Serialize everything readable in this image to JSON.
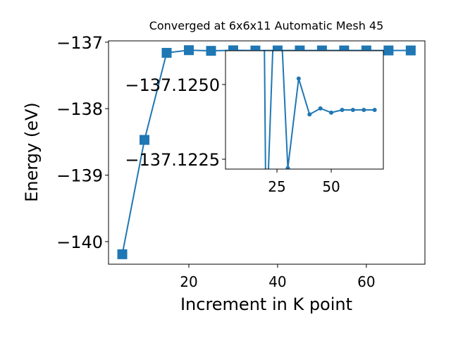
{
  "chart_data": [
    {
      "type": "line",
      "title": "Converged at 6x6x11 Automatic Mesh 45",
      "x_label": "Increment in K point",
      "y_label": "Energy (eV)",
      "x": [
        5,
        10,
        15,
        20,
        25,
        30,
        35,
        40,
        45,
        50,
        55,
        60,
        65,
        70
      ],
      "values": [
        -140.19,
        -138.47,
        -137.16,
        -137.12,
        -137.13,
        -137.1222,
        -137.1252,
        -137.124,
        -137.1242,
        -137.12406,
        -137.12415,
        -137.12415,
        -137.12415,
        -137.12415
      ],
      "color": "#1f77b4",
      "marker": "square",
      "xlim": [
        1.9,
        73.2
      ],
      "ylim": [
        -140.34,
        -136.98
      ],
      "xticks": [
        20,
        40,
        60
      ],
      "yticks": [
        {
          "value": -140,
          "label": "−140"
        },
        {
          "value": -139,
          "label": "−139"
        },
        {
          "value": -138,
          "label": "−138"
        },
        {
          "value": -137,
          "label": "−137"
        }
      ]
    },
    {
      "type": "line",
      "color": "#1f77b4",
      "marker": "circle",
      "xlim": [
        1.3,
        74.0
      ],
      "ylim": [
        -137.12217,
        -137.12613
      ],
      "xticks": [
        25,
        50
      ],
      "yticks": [
        {
          "value": -137.1225,
          "label": "−137.1225"
        },
        {
          "value": -137.125,
          "label": "−137.1250"
        }
      ]
    }
  ]
}
